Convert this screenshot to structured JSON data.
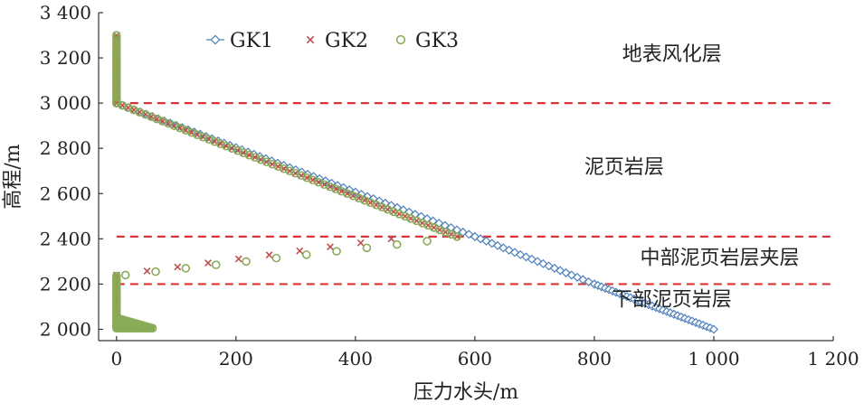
{
  "chart_data": {
    "type": "scatter",
    "title": "",
    "xlabel": "压力水头/m",
    "ylabel": "高程/m",
    "xlim": [
      -30,
      1200
    ],
    "ylim": [
      1950,
      3400
    ],
    "xticks": [
      0,
      200,
      400,
      600,
      800,
      1000,
      1200
    ],
    "xtick_labels": [
      "0",
      "200",
      "400",
      "600",
      "800",
      "1 000",
      "1 200"
    ],
    "yticks": [
      2000,
      2200,
      2400,
      2600,
      2800,
      3000,
      3200,
      3400
    ],
    "ytick_labels": [
      "2 000",
      "2 200",
      "2 400",
      "2 600",
      "2 800",
      "3 000",
      "3 200",
      "3 400"
    ],
    "legend": {
      "position": "top-left",
      "entries": [
        "GK1",
        "GK2",
        "GK3"
      ]
    },
    "reference_lines": [
      {
        "y": 3000,
        "style": "dashed",
        "color": "#d93535"
      },
      {
        "y": 2410,
        "style": "dashed",
        "color": "#d93535"
      },
      {
        "y": 2200,
        "style": "dashed",
        "color": "#d93535"
      }
    ],
    "layer_labels": [
      {
        "text": "地表风化层",
        "x": 930,
        "y": 3220
      },
      {
        "text": "泥页岩层",
        "x": 850,
        "y": 2720
      },
      {
        "text": "中部泥页岩层夹层",
        "x": 1010,
        "y": 2320
      },
      {
        "text": "下部泥页岩层",
        "x": 930,
        "y": 2135
      }
    ],
    "series": [
      {
        "name": "GK1",
        "marker": "diamond",
        "color": "#4f81bd",
        "segments": [
          {
            "x": [
              0,
              600
            ],
            "y": [
              3000,
              2410
            ],
            "step": 10
          },
          {
            "x": [
              600,
              800
            ],
            "y": [
              2410,
              2200
            ],
            "step": 10
          },
          {
            "x": [
              800,
              1000
            ],
            "y": [
              2200,
              2000
            ],
            "step": 6
          }
        ]
      },
      {
        "name": "GK2",
        "marker": "x",
        "color": "#c0504d",
        "segments": [
          {
            "x": [
              0,
              0
            ],
            "y": [
              3000,
              3300
            ],
            "step": 12
          },
          {
            "x": [
              0,
              570
            ],
            "y": [
              3000,
              2410
            ],
            "step": 10
          },
          {
            "x": [
              0,
              460
            ],
            "y": [
              2240,
              2400
            ],
            "step": 50
          },
          {
            "x": [
              0,
              0
            ],
            "y": [
              2010,
              2235
            ],
            "step": 8
          },
          {
            "x": [
              0,
              60
            ],
            "y": [
              2040,
              2005
            ],
            "step": 3
          },
          {
            "x": [
              0,
              60
            ],
            "y": [
              2005,
              2005
            ],
            "step": 3
          }
        ]
      },
      {
        "name": "GK3",
        "marker": "circle",
        "color": "#8aac59",
        "segments": [
          {
            "x": [
              0,
              0
            ],
            "y": [
              3000,
              3300
            ],
            "step": 12
          },
          {
            "x": [
              0,
              570
            ],
            "y": [
              3000,
              2410
            ],
            "step": 10
          },
          {
            "x": [
              15,
              520
            ],
            "y": [
              2240,
              2390
            ],
            "step": 50
          },
          {
            "x": [
              0,
              0
            ],
            "y": [
              2010,
              2235
            ],
            "step": 8
          },
          {
            "x": [
              0,
              60
            ],
            "y": [
              2050,
              2005
            ],
            "step": 3
          },
          {
            "x": [
              0,
              60
            ],
            "y": [
              2005,
              2005
            ],
            "step": 3
          }
        ]
      }
    ]
  }
}
